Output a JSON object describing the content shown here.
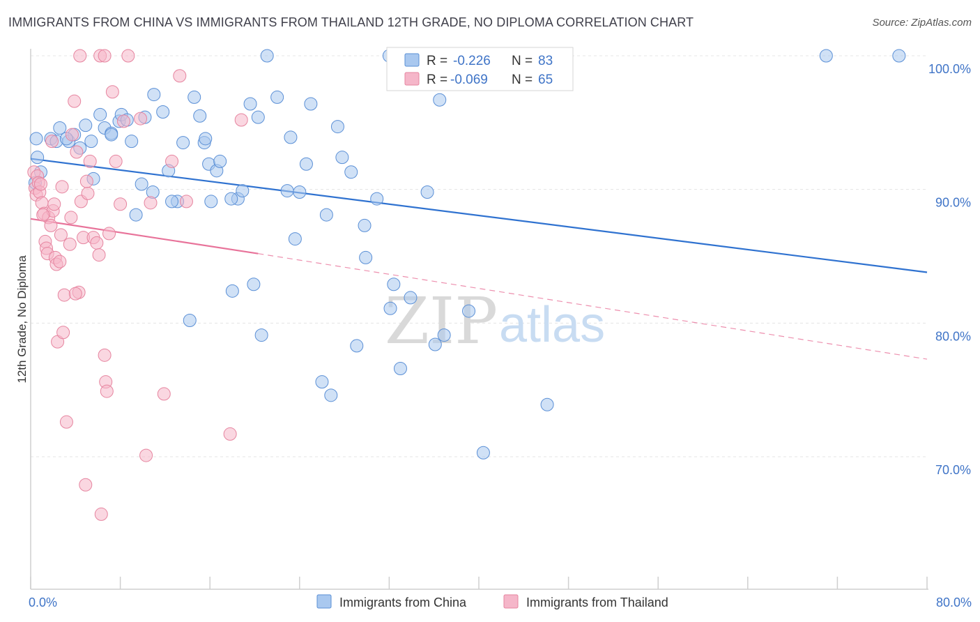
{
  "header": {
    "title": "IMMIGRANTS FROM CHINA VS IMMIGRANTS FROM THAILAND 12TH GRADE, NO DIPLOMA CORRELATION CHART",
    "source": "Source: ZipAtlas.com"
  },
  "watermark": {
    "zip": "ZIP",
    "atlas": "atlas"
  },
  "legend": {
    "r_label": "R =",
    "n_label": "N =",
    "rows": [
      {
        "r": "-0.226",
        "n": "83",
        "color": "#a9c8ef"
      },
      {
        "r": "-0.069",
        "n": "65",
        "color": "#f5b6c9"
      }
    ]
  },
  "chart_data": {
    "type": "scatter",
    "title": "IMMIGRANTS FROM CHINA VS IMMIGRANTS FROM THAILAND 12TH GRADE, NO DIPLOMA CORRELATION CHART",
    "xlabel": "",
    "ylabel": "12th Grade, No Diploma",
    "xlim": [
      0,
      80
    ],
    "ylim": [
      60.5,
      103
    ],
    "x_tick_labels": [
      "0.0%",
      "80.0%"
    ],
    "y_ticks": [
      70,
      80,
      90,
      100
    ],
    "y_tick_labels": [
      "70.0%",
      "80.0%",
      "90.0%",
      "100.0%"
    ],
    "grid": true,
    "legend_position": "top-center",
    "series": [
      {
        "name": "Immigrants from China",
        "color": "#a9c8ef",
        "stroke": "#5a8fd6",
        "trend": {
          "x": [
            0,
            80
          ],
          "y": [
            92.3,
            83.8
          ],
          "style": "solid",
          "color": "#2f72d0"
        },
        "points": [
          [
            0.6,
            92.4
          ],
          [
            0.9,
            91.3
          ],
          [
            0.4,
            90.5
          ],
          [
            1.8,
            93.8
          ],
          [
            2.6,
            94.6
          ],
          [
            3.4,
            93.6
          ],
          [
            3.9,
            94.1
          ],
          [
            4.4,
            93.1
          ],
          [
            4.9,
            94.8
          ],
          [
            5.4,
            93.6
          ],
          [
            6.2,
            95.6
          ],
          [
            6.6,
            94.6
          ],
          [
            7.2,
            94.2
          ],
          [
            7.9,
            95.1
          ],
          [
            8.1,
            95.6
          ],
          [
            8.6,
            95.2
          ],
          [
            9.0,
            93.6
          ],
          [
            9.4,
            88.1
          ],
          [
            10.2,
            95.4
          ],
          [
            11.0,
            97.1
          ],
          [
            11.8,
            95.8
          ],
          [
            12.3,
            91.4
          ],
          [
            13.1,
            89.1
          ],
          [
            13.6,
            93.5
          ],
          [
            14.2,
            80.2
          ],
          [
            14.6,
            96.9
          ],
          [
            15.1,
            95.5
          ],
          [
            15.5,
            93.5
          ],
          [
            15.9,
            91.9
          ],
          [
            16.1,
            89.1
          ],
          [
            16.6,
            91.4
          ],
          [
            16.9,
            92.1
          ],
          [
            18.0,
            82.4
          ],
          [
            18.5,
            89.3
          ],
          [
            18.9,
            89.9
          ],
          [
            19.6,
            96.4
          ],
          [
            19.9,
            82.9
          ],
          [
            20.3,
            95.4
          ],
          [
            20.6,
            79.1
          ],
          [
            21.1,
            100.0
          ],
          [
            22.0,
            96.9
          ],
          [
            22.9,
            89.9
          ],
          [
            23.2,
            93.9
          ],
          [
            23.6,
            86.3
          ],
          [
            24.0,
            89.8
          ],
          [
            24.6,
            91.9
          ],
          [
            25.0,
            96.4
          ],
          [
            26.0,
            75.6
          ],
          [
            26.8,
            74.6
          ],
          [
            26.4,
            88.1
          ],
          [
            27.4,
            94.7
          ],
          [
            27.8,
            92.4
          ],
          [
            28.6,
            91.3
          ],
          [
            29.1,
            78.3
          ],
          [
            29.8,
            87.3
          ],
          [
            29.9,
            84.9
          ],
          [
            32.0,
            100.0
          ],
          [
            30.9,
            89.3
          ],
          [
            32.1,
            81.1
          ],
          [
            32.4,
            82.9
          ],
          [
            33.0,
            76.6
          ],
          [
            33.9,
            81.9
          ],
          [
            35.0,
            100.0
          ],
          [
            35.4,
            89.8
          ],
          [
            35.6,
            99.6
          ],
          [
            36.1,
            78.4
          ],
          [
            36.5,
            96.7
          ],
          [
            36.9,
            79.1
          ],
          [
            39.1,
            80.9
          ],
          [
            40.4,
            70.3
          ],
          [
            46.1,
            73.9
          ],
          [
            71.0,
            100.0
          ],
          [
            77.5,
            100.0
          ],
          [
            0.5,
            93.8
          ],
          [
            2.3,
            93.6
          ],
          [
            3.2,
            93.8
          ],
          [
            5.6,
            90.8
          ],
          [
            7.2,
            94.1
          ],
          [
            9.9,
            90.4
          ],
          [
            10.9,
            89.8
          ],
          [
            12.6,
            89.1
          ],
          [
            15.6,
            93.8
          ],
          [
            17.9,
            89.3
          ]
        ]
      },
      {
        "name": "Immigrants from Thailand",
        "color": "#f5b6c9",
        "stroke": "#e6849f",
        "trend": {
          "x": [
            0,
            20.3,
            80
          ],
          "y": [
            87.8,
            85.2,
            77.3
          ],
          "style": "solid-then-dashed",
          "color": "#e8739a"
        },
        "points": [
          [
            0.3,
            91.3
          ],
          [
            0.4,
            90.1
          ],
          [
            0.5,
            89.6
          ],
          [
            0.6,
            91.0
          ],
          [
            0.7,
            90.5
          ],
          [
            0.8,
            89.8
          ],
          [
            1.0,
            89.0
          ],
          [
            1.2,
            88.2
          ],
          [
            1.3,
            86.1
          ],
          [
            1.4,
            85.6
          ],
          [
            1.5,
            85.2
          ],
          [
            1.6,
            87.9
          ],
          [
            1.8,
            87.3
          ],
          [
            2.0,
            88.4
          ],
          [
            2.1,
            88.9
          ],
          [
            2.2,
            84.9
          ],
          [
            2.3,
            84.4
          ],
          [
            2.4,
            78.6
          ],
          [
            2.6,
            84.6
          ],
          [
            2.8,
            90.2
          ],
          [
            2.9,
            79.3
          ],
          [
            3.0,
            82.1
          ],
          [
            3.2,
            72.6
          ],
          [
            3.5,
            85.9
          ],
          [
            3.7,
            94.1
          ],
          [
            3.9,
            96.6
          ],
          [
            4.1,
            92.8
          ],
          [
            4.3,
            82.3
          ],
          [
            4.5,
            89.1
          ],
          [
            4.7,
            86.4
          ],
          [
            4.9,
            67.9
          ],
          [
            5.1,
            89.7
          ],
          [
            5.3,
            92.1
          ],
          [
            5.6,
            86.4
          ],
          [
            5.9,
            86.0
          ],
          [
            6.1,
            85.1
          ],
          [
            6.3,
            65.7
          ],
          [
            6.6,
            77.6
          ],
          [
            6.7,
            75.6
          ],
          [
            6.8,
            74.9
          ],
          [
            7.3,
            97.3
          ],
          [
            8.3,
            95.1
          ],
          [
            9.8,
            95.3
          ],
          [
            10.3,
            70.1
          ],
          [
            10.7,
            89.0
          ],
          [
            11.9,
            74.7
          ],
          [
            12.6,
            92.1
          ],
          [
            13.3,
            98.5
          ],
          [
            13.9,
            89.1
          ],
          [
            17.8,
            71.7
          ],
          [
            18.8,
            95.2
          ],
          [
            4.4,
            100.0
          ],
          [
            6.2,
            100.0
          ],
          [
            6.6,
            100.0
          ],
          [
            8.7,
            100.0
          ],
          [
            1.9,
            93.6
          ],
          [
            1.1,
            88.1
          ],
          [
            0.9,
            90.4
          ],
          [
            2.7,
            86.6
          ],
          [
            3.6,
            87.9
          ],
          [
            4.0,
            82.2
          ],
          [
            5.0,
            90.6
          ],
          [
            7.0,
            86.7
          ],
          [
            7.6,
            92.1
          ],
          [
            8.0,
            88.9
          ]
        ]
      }
    ]
  },
  "bottom_legend": [
    {
      "label": "Immigrants from China",
      "color": "#a9c8ef"
    },
    {
      "label": "Immigrants from Thailand",
      "color": "#f5b6c9"
    }
  ]
}
